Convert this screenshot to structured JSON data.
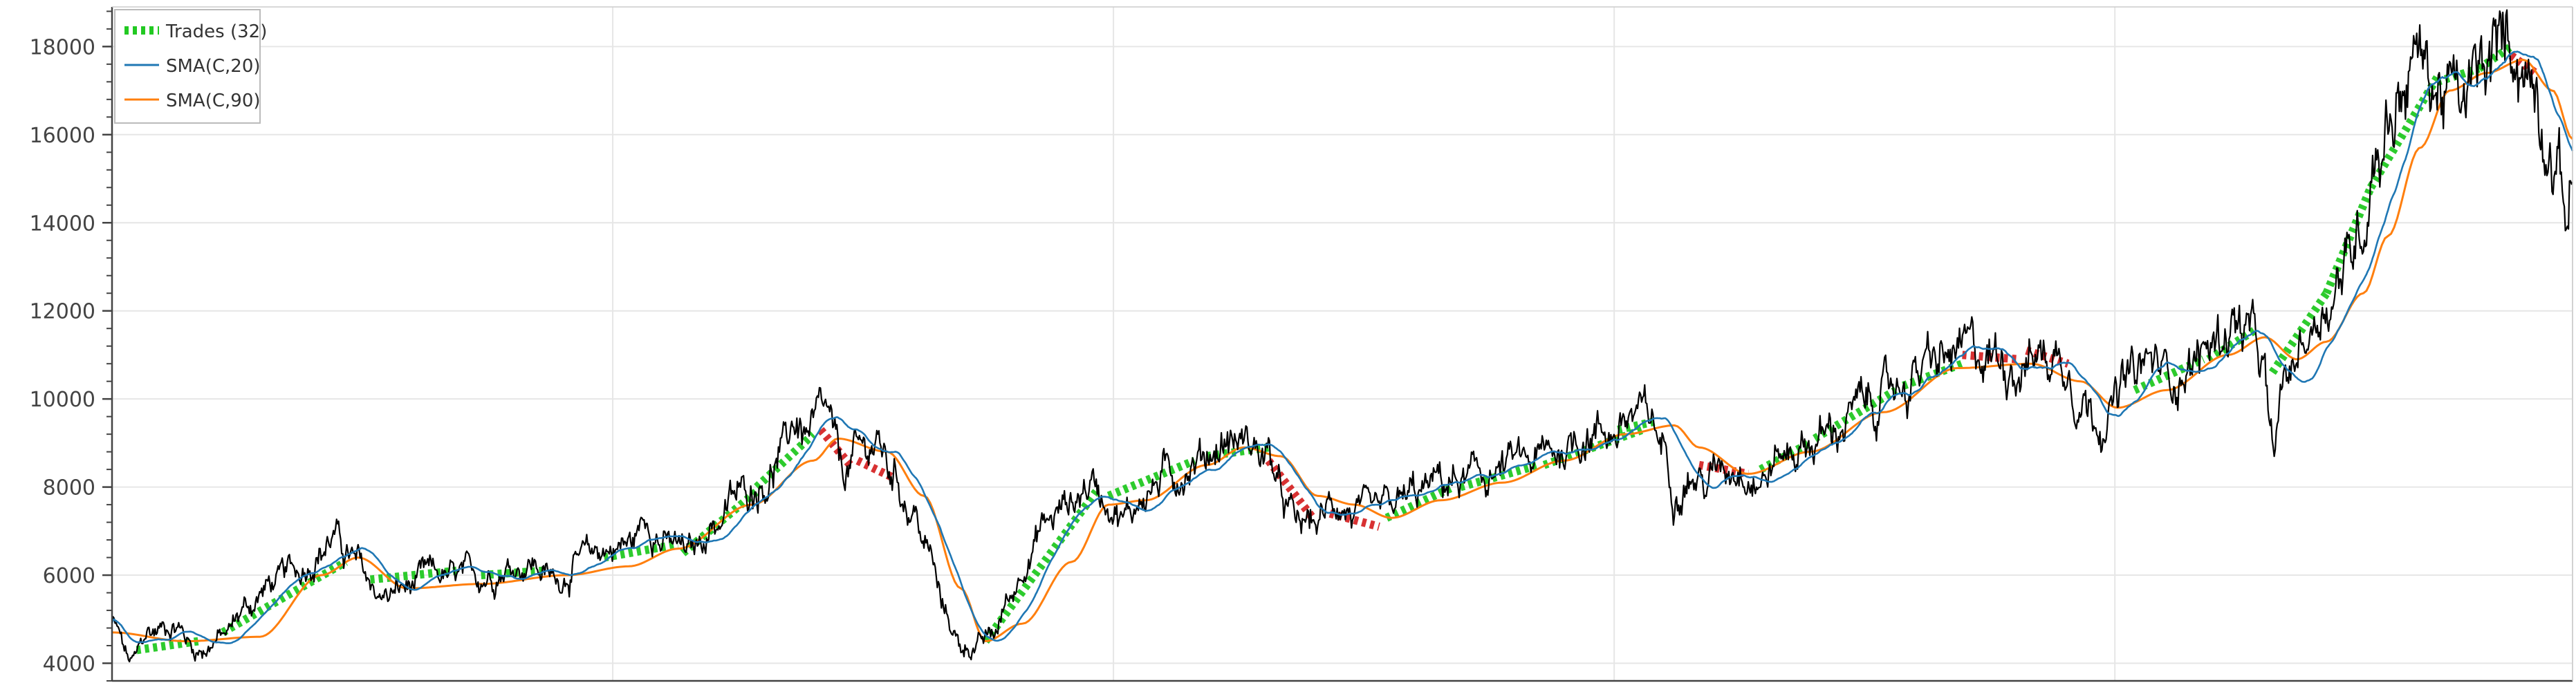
{
  "chart_data": {
    "type": "line",
    "title": "",
    "xlabel": "",
    "ylabel": "",
    "ylim": [
      3600,
      18900
    ],
    "y_ticks": [
      4000,
      6000,
      8000,
      10000,
      12000,
      14000,
      16000,
      18000
    ],
    "y_tick_labels": [
      "4000",
      "6000",
      "8000",
      "10000",
      "12000",
      "14000",
      "16000",
      "18000"
    ],
    "grid": true,
    "legend": {
      "placement": "top-left",
      "entries": [
        {
          "label": "Trades (32)",
          "style": "dashed-thick",
          "color": "#22c922"
        },
        {
          "label": "SMA(C,20)",
          "style": "line",
          "color": "#1f77b4"
        },
        {
          "label": "SMA(C,90)",
          "style": "line",
          "color": "#ff7f0e"
        }
      ]
    },
    "colors": {
      "price": "#000000",
      "sma20": "#1f77b4",
      "sma90": "#ff7f0e",
      "trade_win": "#22c922",
      "trade_loss": "#d62728",
      "grid": "#e6e6e6",
      "axis": "#444444"
    },
    "x_index_range": [
      0,
      1000
    ],
    "price_anchors": [
      {
        "x": 0,
        "y": 4900
      },
      {
        "x": 8,
        "y": 4000
      },
      {
        "x": 15,
        "y": 4700
      },
      {
        "x": 25,
        "y": 4900
      },
      {
        "x": 35,
        "y": 4300
      },
      {
        "x": 45,
        "y": 4600
      },
      {
        "x": 55,
        "y": 5300
      },
      {
        "x": 65,
        "y": 5800
      },
      {
        "x": 75,
        "y": 6100
      },
      {
        "x": 85,
        "y": 6600
      },
      {
        "x": 90,
        "y": 6900
      },
      {
        "x": 95,
        "y": 6500
      },
      {
        "x": 100,
        "y": 6200
      },
      {
        "x": 105,
        "y": 5800
      },
      {
        "x": 110,
        "y": 5500
      },
      {
        "x": 120,
        "y": 5700
      },
      {
        "x": 130,
        "y": 6000
      },
      {
        "x": 140,
        "y": 5900
      },
      {
        "x": 150,
        "y": 6000
      },
      {
        "x": 160,
        "y": 6200
      },
      {
        "x": 170,
        "y": 6300
      },
      {
        "x": 180,
        "y": 5900
      },
      {
        "x": 190,
        "y": 6300
      },
      {
        "x": 200,
        "y": 6600
      },
      {
        "x": 210,
        "y": 6700
      },
      {
        "x": 218,
        "y": 7300
      },
      {
        "x": 225,
        "y": 6700
      },
      {
        "x": 235,
        "y": 6500
      },
      {
        "x": 245,
        "y": 7200
      },
      {
        "x": 255,
        "y": 7800
      },
      {
        "x": 265,
        "y": 8200
      },
      {
        "x": 272,
        "y": 8700
      },
      {
        "x": 278,
        "y": 9500
      },
      {
        "x": 283,
        "y": 9200
      },
      {
        "x": 290,
        "y": 9500
      },
      {
        "x": 297,
        "y": 8300
      },
      {
        "x": 303,
        "y": 8700
      },
      {
        "x": 310,
        "y": 9000
      },
      {
        "x": 318,
        "y": 8300
      },
      {
        "x": 325,
        "y": 7500
      },
      {
        "x": 332,
        "y": 6500
      },
      {
        "x": 338,
        "y": 5200
      },
      {
        "x": 345,
        "y": 4400
      },
      {
        "x": 352,
        "y": 4400
      },
      {
        "x": 358,
        "y": 4600
      },
      {
        "x": 365,
        "y": 5500
      },
      {
        "x": 372,
        "y": 6500
      },
      {
        "x": 380,
        "y": 7200
      },
      {
        "x": 390,
        "y": 7700
      },
      {
        "x": 398,
        "y": 8100
      },
      {
        "x": 405,
        "y": 7800
      },
      {
        "x": 412,
        "y": 7300
      },
      {
        "x": 420,
        "y": 7900
      },
      {
        "x": 430,
        "y": 8300
      },
      {
        "x": 440,
        "y": 8600
      },
      {
        "x": 448,
        "y": 8900
      },
      {
        "x": 455,
        "y": 9100
      },
      {
        "x": 462,
        "y": 9000
      },
      {
        "x": 470,
        "y": 8700
      },
      {
        "x": 476,
        "y": 7600
      },
      {
        "x": 482,
        "y": 7100
      },
      {
        "x": 490,
        "y": 7200
      },
      {
        "x": 498,
        "y": 7700
      },
      {
        "x": 505,
        "y": 7400
      },
      {
        "x": 512,
        "y": 7200
      },
      {
        "x": 520,
        "y": 7500
      },
      {
        "x": 530,
        "y": 7800
      },
      {
        "x": 540,
        "y": 8100
      },
      {
        "x": 550,
        "y": 8100
      },
      {
        "x": 560,
        "y": 8300
      },
      {
        "x": 570,
        "y": 8500
      },
      {
        "x": 580,
        "y": 8600
      },
      {
        "x": 590,
        "y": 8900
      },
      {
        "x": 600,
        "y": 9300
      },
      {
        "x": 610,
        "y": 9300
      },
      {
        "x": 618,
        "y": 9600
      },
      {
        "x": 625,
        "y": 9500
      },
      {
        "x": 630,
        "y": 9000
      },
      {
        "x": 635,
        "y": 8100
      },
      {
        "x": 640,
        "y": 8300
      },
      {
        "x": 648,
        "y": 8100
      },
      {
        "x": 655,
        "y": 8500
      },
      {
        "x": 662,
        "y": 8600
      },
      {
        "x": 670,
        "y": 8200
      },
      {
        "x": 678,
        "y": 8700
      },
      {
        "x": 688,
        "y": 9000
      },
      {
        "x": 698,
        "y": 9200
      },
      {
        "x": 708,
        "y": 9700
      },
      {
        "x": 718,
        "y": 10000
      },
      {
        "x": 728,
        "y": 10400
      },
      {
        "x": 738,
        "y": 10700
      },
      {
        "x": 748,
        "y": 10900
      },
      {
        "x": 755,
        "y": 11000
      },
      {
        "x": 765,
        "y": 11000
      },
      {
        "x": 775,
        "y": 10900
      },
      {
        "x": 785,
        "y": 11000
      },
      {
        "x": 795,
        "y": 10900
      },
      {
        "x": 800,
        "y": 10100
      },
      {
        "x": 806,
        "y": 9700
      },
      {
        "x": 812,
        "y": 9800
      },
      {
        "x": 820,
        "y": 10400
      },
      {
        "x": 828,
        "y": 10800
      },
      {
        "x": 836,
        "y": 10600
      },
      {
        "x": 845,
        "y": 10800
      },
      {
        "x": 855,
        "y": 11300
      },
      {
        "x": 862,
        "y": 11800
      },
      {
        "x": 868,
        "y": 11500
      },
      {
        "x": 874,
        "y": 10700
      },
      {
        "x": 878,
        "y": 8700
      },
      {
        "x": 884,
        "y": 10500
      },
      {
        "x": 892,
        "y": 11500
      },
      {
        "x": 900,
        "y": 12300
      },
      {
        "x": 908,
        "y": 13000
      },
      {
        "x": 914,
        "y": 14000
      },
      {
        "x": 920,
        "y": 15800
      },
      {
        "x": 926,
        "y": 16500
      },
      {
        "x": 932,
        "y": 17300
      },
      {
        "x": 938,
        "y": 17800
      },
      {
        "x": 943,
        "y": 17200
      },
      {
        "x": 948,
        "y": 17000
      },
      {
        "x": 955,
        "y": 16600
      },
      {
        "x": 962,
        "y": 17200
      },
      {
        "x": 970,
        "y": 17800
      },
      {
        "x": 975,
        "y": 18300
      },
      {
        "x": 980,
        "y": 17600
      },
      {
        "x": 985,
        "y": 17200
      },
      {
        "x": 990,
        "y": 16200
      },
      {
        "x": 994,
        "y": 15200
      },
      {
        "x": 997,
        "y": 14300
      },
      {
        "x": 1000,
        "y": 14900
      }
    ],
    "sma90_anchors": [
      {
        "x": 0,
        "y": 4700
      },
      {
        "x": 30,
        "y": 4500
      },
      {
        "x": 60,
        "y": 4600
      },
      {
        "x": 85,
        "y": 6000
      },
      {
        "x": 100,
        "y": 6400
      },
      {
        "x": 120,
        "y": 5700
      },
      {
        "x": 150,
        "y": 5800
      },
      {
        "x": 185,
        "y": 6000
      },
      {
        "x": 210,
        "y": 6200
      },
      {
        "x": 230,
        "y": 6600
      },
      {
        "x": 260,
        "y": 7600
      },
      {
        "x": 285,
        "y": 8600
      },
      {
        "x": 295,
        "y": 9100
      },
      {
        "x": 315,
        "y": 8800
      },
      {
        "x": 330,
        "y": 7800
      },
      {
        "x": 345,
        "y": 5700
      },
      {
        "x": 355,
        "y": 4500
      },
      {
        "x": 370,
        "y": 4900
      },
      {
        "x": 390,
        "y": 6300
      },
      {
        "x": 405,
        "y": 7600
      },
      {
        "x": 420,
        "y": 7700
      },
      {
        "x": 445,
        "y": 8500
      },
      {
        "x": 460,
        "y": 8900
      },
      {
        "x": 475,
        "y": 8700
      },
      {
        "x": 490,
        "y": 7800
      },
      {
        "x": 505,
        "y": 7600
      },
      {
        "x": 520,
        "y": 7300
      },
      {
        "x": 540,
        "y": 7700
      },
      {
        "x": 565,
        "y": 8100
      },
      {
        "x": 590,
        "y": 8600
      },
      {
        "x": 615,
        "y": 9200
      },
      {
        "x": 635,
        "y": 9400
      },
      {
        "x": 645,
        "y": 8900
      },
      {
        "x": 665,
        "y": 8300
      },
      {
        "x": 690,
        "y": 8800
      },
      {
        "x": 720,
        "y": 9700
      },
      {
        "x": 750,
        "y": 10700
      },
      {
        "x": 780,
        "y": 10800
      },
      {
        "x": 800,
        "y": 10400
      },
      {
        "x": 815,
        "y": 9800
      },
      {
        "x": 835,
        "y": 10200
      },
      {
        "x": 860,
        "y": 11000
      },
      {
        "x": 875,
        "y": 11400
      },
      {
        "x": 888,
        "y": 10900
      },
      {
        "x": 900,
        "y": 11300
      },
      {
        "x": 915,
        "y": 12400
      },
      {
        "x": 925,
        "y": 13700
      },
      {
        "x": 938,
        "y": 15700
      },
      {
        "x": 950,
        "y": 17000
      },
      {
        "x": 965,
        "y": 17400
      },
      {
        "x": 980,
        "y": 17700
      },
      {
        "x": 992,
        "y": 17000
      },
      {
        "x": 1000,
        "y": 15900
      }
    ],
    "trades": [
      {
        "entry": {
          "x": 45,
          "y": 4700
        },
        "exit": {
          "x": 95,
          "y": 6300
        },
        "result": "win"
      },
      {
        "entry": {
          "x": 105,
          "y": 5900
        },
        "exit": {
          "x": 140,
          "y": 6100
        },
        "result": "win"
      },
      {
        "entry": {
          "x": 150,
          "y": 6000
        },
        "exit": {
          "x": 175,
          "y": 6100
        },
        "result": "win"
      },
      {
        "entry": {
          "x": 200,
          "y": 6400
        },
        "exit": {
          "x": 230,
          "y": 6700
        },
        "result": "win"
      },
      {
        "entry": {
          "x": 232,
          "y": 6500
        },
        "exit": {
          "x": 262,
          "y": 7900
        },
        "result": "win"
      },
      {
        "entry": {
          "x": 262,
          "y": 8000
        },
        "exit": {
          "x": 285,
          "y": 9200
        },
        "result": "win"
      },
      {
        "entry": {
          "x": 288,
          "y": 9300
        },
        "exit": {
          "x": 300,
          "y": 8500
        },
        "result": "loss"
      },
      {
        "entry": {
          "x": 303,
          "y": 8600
        },
        "exit": {
          "x": 318,
          "y": 8200
        },
        "result": "loss"
      },
      {
        "entry": {
          "x": 355,
          "y": 4500
        },
        "exit": {
          "x": 400,
          "y": 7900
        },
        "result": "win"
      },
      {
        "entry": {
          "x": 405,
          "y": 7800
        },
        "exit": {
          "x": 440,
          "y": 8600
        },
        "result": "win"
      },
      {
        "entry": {
          "x": 445,
          "y": 8700
        },
        "exit": {
          "x": 470,
          "y": 8900
        },
        "result": "win"
      },
      {
        "entry": {
          "x": 470,
          "y": 8600
        },
        "exit": {
          "x": 488,
          "y": 7300
        },
        "result": "loss"
      },
      {
        "entry": {
          "x": 495,
          "y": 7400
        },
        "exit": {
          "x": 515,
          "y": 7100
        },
        "result": "loss"
      },
      {
        "entry": {
          "x": 518,
          "y": 7300
        },
        "exit": {
          "x": 545,
          "y": 8000
        },
        "result": "win"
      },
      {
        "entry": {
          "x": 548,
          "y": 8000
        },
        "exit": {
          "x": 580,
          "y": 8500
        },
        "result": "win"
      },
      {
        "entry": {
          "x": 582,
          "y": 8500
        },
        "exit": {
          "x": 622,
          "y": 9300
        },
        "result": "win"
      },
      {
        "entry": {
          "x": 645,
          "y": 8500
        },
        "exit": {
          "x": 665,
          "y": 8300
        },
        "result": "loss"
      },
      {
        "entry": {
          "x": 670,
          "y": 8400
        },
        "exit": {
          "x": 690,
          "y": 9000
        },
        "result": "win"
      },
      {
        "entry": {
          "x": 692,
          "y": 9100
        },
        "exit": {
          "x": 725,
          "y": 10200
        },
        "result": "win"
      },
      {
        "entry": {
          "x": 728,
          "y": 10300
        },
        "exit": {
          "x": 752,
          "y": 10800
        },
        "result": "win"
      },
      {
        "entry": {
          "x": 752,
          "y": 11000
        },
        "exit": {
          "x": 775,
          "y": 10900
        },
        "result": "loss"
      },
      {
        "entry": {
          "x": 778,
          "y": 11100
        },
        "exit": {
          "x": 795,
          "y": 10800
        },
        "result": "loss"
      },
      {
        "entry": {
          "x": 822,
          "y": 10200
        },
        "exit": {
          "x": 850,
          "y": 10900
        },
        "result": "win"
      },
      {
        "entry": {
          "x": 852,
          "y": 10900
        },
        "exit": {
          "x": 872,
          "y": 11600
        },
        "result": "win"
      },
      {
        "entry": {
          "x": 878,
          "y": 10600
        },
        "exit": {
          "x": 900,
          "y": 12400
        },
        "result": "win"
      },
      {
        "entry": {
          "x": 900,
          "y": 12400
        },
        "exit": {
          "x": 918,
          "y": 14800
        },
        "result": "win"
      },
      {
        "entry": {
          "x": 918,
          "y": 14800
        },
        "exit": {
          "x": 945,
          "y": 17300
        },
        "result": "win"
      },
      {
        "entry": {
          "x": 945,
          "y": 17200
        },
        "exit": {
          "x": 962,
          "y": 17500
        },
        "result": "win"
      },
      {
        "entry": {
          "x": 962,
          "y": 17500
        },
        "exit": {
          "x": 975,
          "y": 18000
        },
        "result": "win"
      },
      {
        "entry": {
          "x": 975,
          "y": 17800
        },
        "exit": {
          "x": 985,
          "y": 17400
        },
        "result": "loss"
      },
      {
        "entry": {
          "x": 10,
          "y": 4300
        },
        "exit": {
          "x": 35,
          "y": 4500
        },
        "result": "win"
      },
      {
        "entry": {
          "x": 612,
          "y": 9300
        },
        "exit": {
          "x": 628,
          "y": 9500
        },
        "result": "win"
      }
    ]
  }
}
